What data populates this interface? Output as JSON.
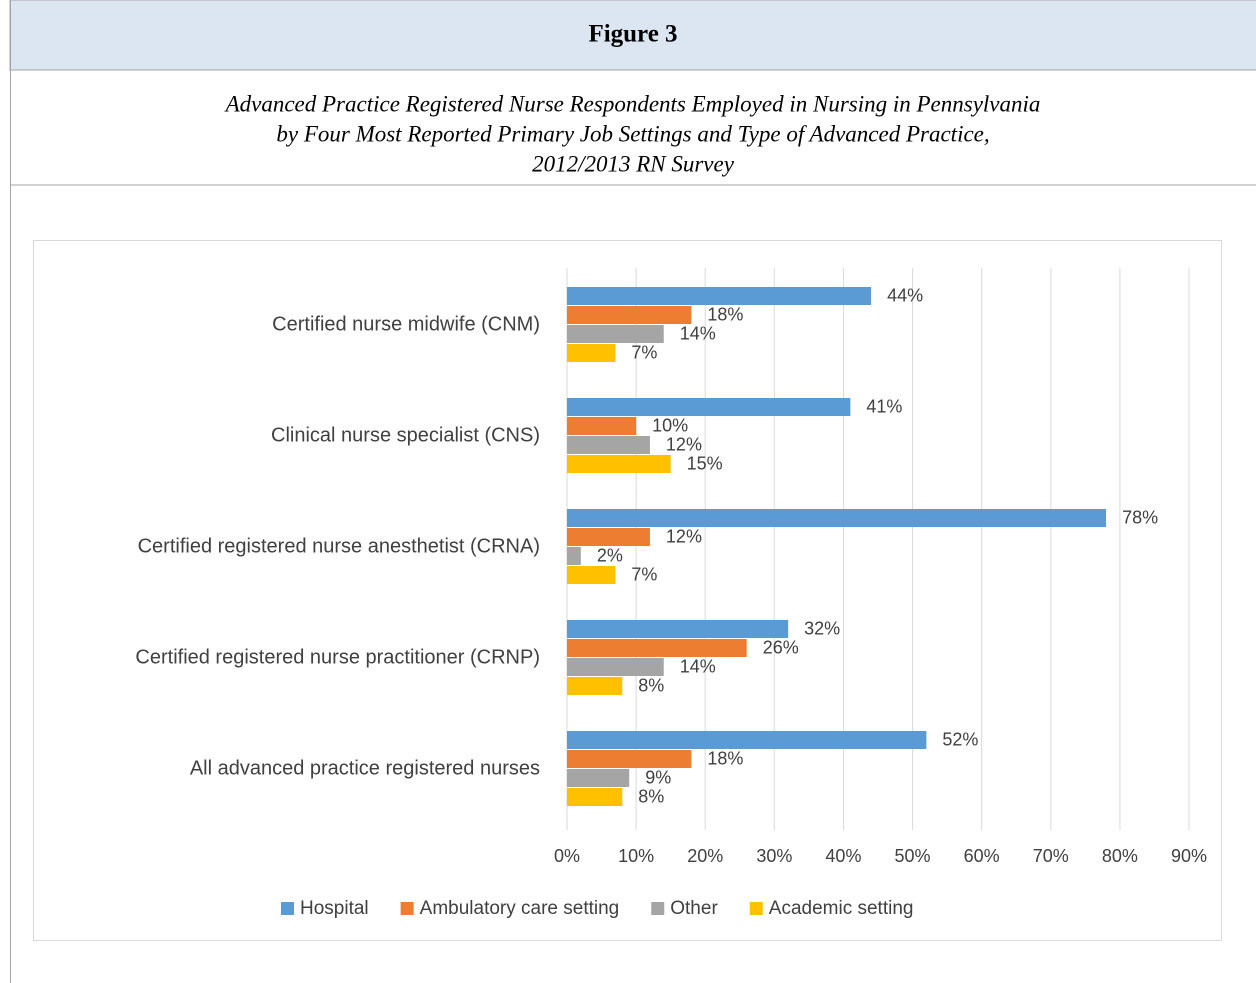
{
  "chart_data": {
    "type": "bar",
    "orientation": "horizontal",
    "title": "Figure 3",
    "subtitle": [
      "Advanced Practice Registered Nurse Respondents Employed in Nursing in Pennsylvania",
      "by Four Most Reported Primary Job Settings and Type of Advanced Practice,",
      "2012/2013 RN Survey"
    ],
    "categories": [
      "Certified nurse midwife (CNM)",
      "Clinical nurse specialist (CNS)",
      "Certified registered nurse anesthetist (CRNA)",
      "Certified registered nurse practitioner (CRNP)",
      "All advanced practice registered nurses"
    ],
    "series": [
      {
        "name": "Hospital",
        "color": "#5b9bd5",
        "values": [
          44,
          41,
          78,
          32,
          52
        ],
        "value_labels": [
          "44%",
          "41%",
          "78%",
          "32%",
          "52%"
        ]
      },
      {
        "name": "Ambulatory care setting",
        "color": "#ed7d31",
        "values": [
          18,
          10,
          12,
          26,
          18
        ],
        "value_labels": [
          "18%",
          "10%",
          "12%",
          "26%",
          "18%"
        ]
      },
      {
        "name": "Other",
        "color": "#a5a5a5",
        "values": [
          14,
          12,
          2,
          14,
          9
        ],
        "value_labels": [
          "14%",
          "12%",
          "2%",
          "14%",
          "9%"
        ]
      },
      {
        "name": "Academic setting",
        "color": "#ffc000",
        "values": [
          7,
          15,
          7,
          8,
          8
        ],
        "value_labels": [
          "7%",
          "15%",
          "7%",
          "8%",
          "8%"
        ]
      }
    ],
    "xlim": [
      0,
      90
    ],
    "xticks": [
      {
        "value": 0,
        "label": "0%"
      },
      {
        "value": 10,
        "label": "10%"
      },
      {
        "value": 20,
        "label": "20%"
      },
      {
        "value": 30,
        "label": "30%"
      },
      {
        "value": 40,
        "label": "40%"
      },
      {
        "value": 50,
        "label": "50%"
      },
      {
        "value": 60,
        "label": "60%"
      },
      {
        "value": 70,
        "label": "70%"
      },
      {
        "value": 80,
        "label": "80%"
      },
      {
        "value": 90,
        "label": "90%"
      }
    ],
    "grid": true,
    "legend": "bottom"
  }
}
